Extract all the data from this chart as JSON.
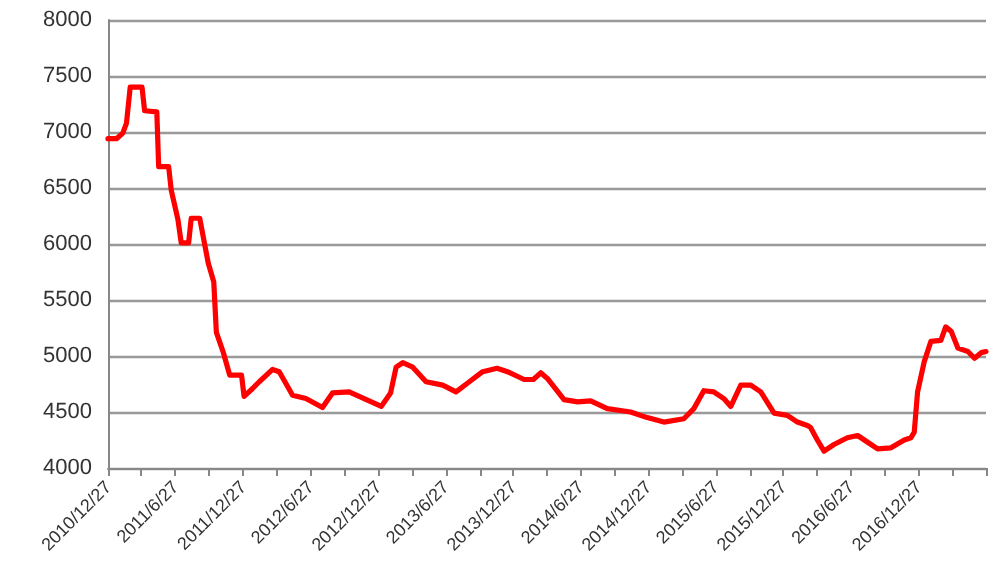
{
  "chart_data": {
    "type": "line",
    "x": [
      "2010-12-27",
      "2011-01-19",
      "2011-02-05",
      "2011-02-15",
      "2011-02-25",
      "2011-03-29",
      "2011-04-05",
      "2011-05-08",
      "2011-05-13",
      "2011-06-09",
      "2011-06-16",
      "2011-07-04",
      "2011-07-13",
      "2011-08-02",
      "2011-08-09",
      "2011-09-01",
      "2011-09-24",
      "2011-10-09",
      "2011-10-16",
      "2011-11-03",
      "2011-11-21",
      "2011-12-23",
      "2011-12-30",
      "2012-01-22",
      "2012-02-09",
      "2012-03-16",
      "2012-04-03",
      "2012-05-09",
      "2012-06-14",
      "2012-07-29",
      "2012-08-25",
      "2012-10-09",
      "2012-11-05",
      "2013-01-04",
      "2013-01-29",
      "2013-02-13",
      "2013-03-03",
      "2013-03-30",
      "2013-05-05",
      "2013-06-19",
      "2013-07-25",
      "2013-08-30",
      "2013-10-05",
      "2013-11-13",
      "2013-12-11",
      "2014-01-25",
      "2014-02-19",
      "2014-03-11",
      "2014-03-29",
      "2014-05-13",
      "2014-06-19",
      "2014-07-24",
      "2014-09-07",
      "2014-11-09",
      "2014-12-24",
      "2015-02-07",
      "2015-04-02",
      "2015-04-29",
      "2015-05-26",
      "2015-06-22",
      "2015-07-19",
      "2015-08-07",
      "2015-09-03",
      "2015-09-30",
      "2015-10-27",
      "2015-12-02",
      "2016-01-07",
      "2016-02-03",
      "2016-03-01",
      "2016-03-10",
      "2016-03-28",
      "2016-04-15",
      "2016-05-12",
      "2016-06-17",
      "2016-07-15",
      "2016-08-11",
      "2016-09-07",
      "2016-10-13",
      "2016-11-18",
      "2016-12-06",
      "2016-12-15",
      "2016-12-24",
      "2017-01-11",
      "2017-01-29",
      "2017-02-25",
      "2017-03-10",
      "2017-03-25",
      "2017-04-12",
      "2017-05-09",
      "2017-05-27",
      "2017-06-14",
      "2017-06-27"
    ],
    "series": [
      {
        "color": "#ff0000",
        "values": [
          6940,
          6940,
          6990,
          7080,
          7400,
          7400,
          7190,
          7180,
          6690,
          6690,
          6480,
          6220,
          6010,
          6010,
          6230,
          6230,
          5830,
          5660,
          5210,
          5040,
          4830,
          4830,
          4640,
          4710,
          4770,
          4880,
          4860,
          4650,
          4620,
          4540,
          4670,
          4680,
          4640,
          4550,
          4670,
          4900,
          4940,
          4900,
          4770,
          4740,
          4680,
          4770,
          4860,
          4890,
          4860,
          4790,
          4790,
          4850,
          4800,
          4610,
          4590,
          4600,
          4530,
          4500,
          4450,
          4410,
          4440,
          4530,
          4690,
          4680,
          4620,
          4550,
          4740,
          4740,
          4680,
          4490,
          4470,
          4410,
          4380,
          4360,
          4250,
          4150,
          4210,
          4270,
          4290,
          4230,
          4170,
          4180,
          4250,
          4270,
          4320,
          4680,
          4950,
          5130,
          5140,
          5260,
          5220,
          5070,
          5040,
          4980,
          5030,
          5040
        ]
      }
    ],
    "xlim": [
      "2010-12-27",
      "2017-06-27"
    ],
    "xticks": [
      {
        "value": "2010-12-27",
        "label": "2010/12/27"
      },
      {
        "value": "2011-03-27",
        "label": null
      },
      {
        "value": "2011-06-27",
        "label": "2011/6/27"
      },
      {
        "value": "2011-09-27",
        "label": null
      },
      {
        "value": "2011-12-27",
        "label": "2011/12/27"
      },
      {
        "value": "2012-03-27",
        "label": null
      },
      {
        "value": "2012-06-27",
        "label": "2012/6/27"
      },
      {
        "value": "2012-09-27",
        "label": null
      },
      {
        "value": "2012-12-27",
        "label": "2012/12/27"
      },
      {
        "value": "2013-03-27",
        "label": null
      },
      {
        "value": "2013-06-27",
        "label": "2013/6/27"
      },
      {
        "value": "2013-09-27",
        "label": null
      },
      {
        "value": "2013-12-27",
        "label": "2013/12/27"
      },
      {
        "value": "2014-03-27",
        "label": null
      },
      {
        "value": "2014-06-27",
        "label": "2014/6/27"
      },
      {
        "value": "2014-09-27",
        "label": null
      },
      {
        "value": "2014-12-27",
        "label": "2014/12/27"
      },
      {
        "value": "2015-03-27",
        "label": null
      },
      {
        "value": "2015-06-27",
        "label": "2015/6/27"
      },
      {
        "value": "2015-09-27",
        "label": null
      },
      {
        "value": "2015-12-27",
        "label": "2015/12/27"
      },
      {
        "value": "2016-03-27",
        "label": null
      },
      {
        "value": "2016-06-27",
        "label": "2016/6/27"
      },
      {
        "value": "2016-09-27",
        "label": null
      },
      {
        "value": "2016-12-27",
        "label": "2016/12/27"
      },
      {
        "value": "2017-03-27",
        "label": null
      },
      {
        "value": "2017-06-27",
        "label": null
      }
    ],
    "ylim": [
      4000,
      8000
    ],
    "yticks": [
      4000,
      4500,
      5000,
      5500,
      6000,
      6500,
      7000,
      7500,
      8000
    ],
    "grid": "y",
    "marker": "none",
    "line_style": "solid"
  }
}
